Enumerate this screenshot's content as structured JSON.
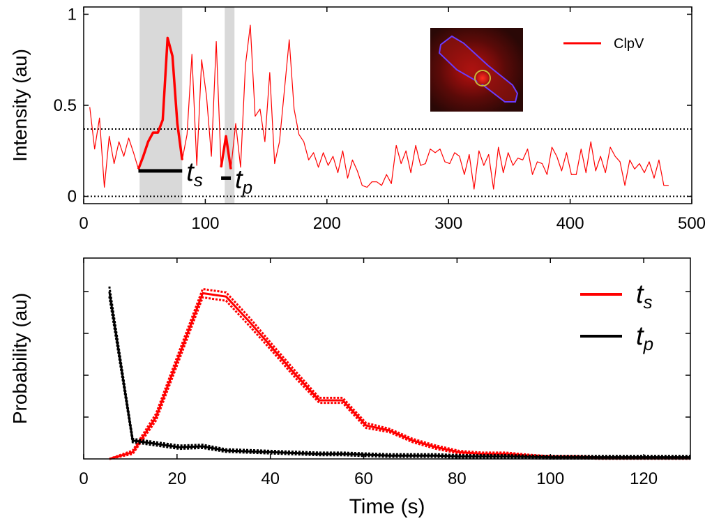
{
  "chart_data": [
    {
      "type": "line",
      "ylabel": "Intensity (au)",
      "x": [
        5,
        9,
        13,
        17,
        21,
        25,
        29,
        33,
        37,
        41,
        45,
        49,
        53,
        57,
        61,
        65,
        69,
        73,
        77,
        81,
        85,
        89,
        93,
        97,
        101,
        105,
        109,
        113,
        117,
        121,
        125,
        129,
        133,
        137,
        141,
        145,
        149,
        153,
        157,
        161,
        165,
        169,
        173,
        177,
        181,
        185,
        189,
        193,
        197,
        201,
        205,
        209,
        213,
        217,
        221,
        225,
        229,
        233,
        237,
        241,
        245,
        249,
        253,
        257,
        261,
        265,
        269,
        273,
        277,
        281,
        285,
        289,
        293,
        297,
        301,
        305,
        309,
        313,
        317,
        321,
        325,
        329,
        333,
        337,
        341,
        345,
        349,
        353,
        357,
        361,
        365,
        369,
        373,
        377,
        381,
        385,
        389,
        393,
        397,
        401,
        405,
        409,
        413,
        417,
        421,
        425,
        429,
        433,
        437,
        441,
        445,
        449,
        453,
        457,
        461,
        465,
        469,
        473,
        477,
        481
      ],
      "series": [
        {
          "name": "ClpV",
          "color": "#ff0000",
          "values": [
            0.49,
            0.26,
            0.43,
            0.05,
            0.33,
            0.18,
            0.3,
            0.22,
            0.32,
            0.24,
            0.15,
            0.22,
            0.3,
            0.35,
            0.35,
            0.42,
            0.87,
            0.77,
            0.4,
            0.2,
            0.34,
            0.78,
            0.17,
            0.75,
            0.55,
            0.22,
            0.85,
            0.16,
            0.33,
            0.15,
            0.4,
            0.16,
            0.72,
            0.94,
            0.44,
            0.48,
            0.3,
            0.68,
            0.18,
            0.3,
            0.58,
            0.86,
            0.48,
            0.34,
            0.3,
            0.2,
            0.24,
            0.16,
            0.24,
            0.17,
            0.22,
            0.13,
            0.25,
            0.1,
            0.2,
            0.14,
            0.06,
            0.05,
            0.08,
            0.08,
            0.06,
            0.12,
            0.07,
            0.28,
            0.18,
            0.25,
            0.13,
            0.28,
            0.17,
            0.18,
            0.26,
            0.24,
            0.26,
            0.19,
            0.18,
            0.24,
            0.22,
            0.12,
            0.23,
            0.04,
            0.25,
            0.17,
            0.23,
            0.04,
            0.27,
            0.13,
            0.24,
            0.17,
            0.21,
            0.2,
            0.26,
            0.12,
            0.19,
            0.18,
            0.12,
            0.27,
            0.22,
            0.14,
            0.24,
            0.12,
            0.12,
            0.26,
            0.13,
            0.3,
            0.14,
            0.22,
            0.13,
            0.27,
            0.22,
            0.19,
            0.06,
            0.2,
            0.15,
            0.18,
            0.13,
            0.19,
            0.1,
            0.2,
            0.06,
            0.06
          ]
        }
      ],
      "highlights": [
        {
          "label": "t",
          "subscript": "s",
          "x": [
            45,
            49,
            53,
            57,
            61,
            65,
            69,
            73,
            77,
            81
          ],
          "values": [
            0.15,
            0.22,
            0.3,
            0.35,
            0.35,
            0.42,
            0.87,
            0.77,
            0.4,
            0.2
          ],
          "bar_y": 0.14
        },
        {
          "label": "t",
          "subscript": "p",
          "x": [
            113,
            117,
            121
          ],
          "values": [
            0.16,
            0.33,
            0.15
          ],
          "bar_y": 0.1
        }
      ],
      "shaded": [
        [
          46,
          81
        ],
        [
          116,
          124
        ]
      ],
      "hlines": [
        0,
        0.37
      ],
      "xlim": [
        0,
        500
      ],
      "ylim": [
        -0.04,
        1.04
      ],
      "xticks": [
        0,
        100,
        200,
        300,
        400,
        500
      ],
      "yticks": [
        0,
        0.5,
        1
      ],
      "legend": "upper right"
    },
    {
      "type": "line",
      "xlabel": "Time (s)",
      "ylabel": "Probability (au)",
      "x": [
        5.5,
        10.5,
        15.5,
        20.5,
        25.5,
        30.5,
        35.5,
        40.5,
        45.5,
        50.5,
        55.5,
        60.5,
        65.5,
        70.5,
        75.5,
        80.5,
        85.5,
        90.5,
        95.5,
        100.5,
        105.5,
        110.5,
        115.5,
        120.5,
        125.5,
        130
      ],
      "series": [
        {
          "name": "t",
          "subscript": "s",
          "color": "#ff0000",
          "values": [
            0.0,
            0.04,
            0.25,
            0.62,
            0.99,
            0.97,
            0.82,
            0.66,
            0.5,
            0.35,
            0.35,
            0.2,
            0.17,
            0.11,
            0.07,
            0.04,
            0.03,
            0.03,
            0.02,
            0.01,
            0.01,
            0.005,
            0.005,
            0.005,
            0.005,
            0.005
          ],
          "errors": [
            0,
            0.01,
            0.02,
            0.025,
            0.025,
            0.025,
            0.025,
            0.02,
            0.02,
            0.015,
            0.015,
            0.015,
            0.01,
            0.01,
            0.01,
            0.008,
            0.008,
            0.008,
            0.005,
            0.005,
            0.005,
            0.004,
            0.004,
            0.004,
            0.004,
            0.004
          ]
        },
        {
          "name": "t",
          "subscript": "p",
          "color": "#000000",
          "values": [
            1.0,
            0.11,
            0.09,
            0.07,
            0.075,
            0.05,
            0.045,
            0.04,
            0.035,
            0.03,
            0.03,
            0.025,
            0.02,
            0.02,
            0.02,
            0.015,
            0.015,
            0.015,
            0.012,
            0.01,
            0.01,
            0.01,
            0.01,
            0.01,
            0.01,
            0.01
          ],
          "errors": [
            0.03,
            0.01,
            0.01,
            0.01,
            0.01,
            0.008,
            0.008,
            0.008,
            0.008,
            0.008,
            0.008,
            0.008,
            0.008,
            0.008,
            0.008,
            0.008,
            0.008,
            0.008,
            0.008,
            0.008,
            0.008,
            0.008,
            0.008,
            0.008,
            0.008,
            0.008
          ]
        }
      ],
      "xlim": [
        0,
        130
      ],
      "ylim": [
        0,
        1.2
      ],
      "xticks": [
        0,
        20,
        40,
        60,
        80,
        100,
        120
      ],
      "yticks": [
        0.25,
        0.5,
        0.75,
        1
      ],
      "ytick_labels": false,
      "legend": "upper right"
    }
  ]
}
